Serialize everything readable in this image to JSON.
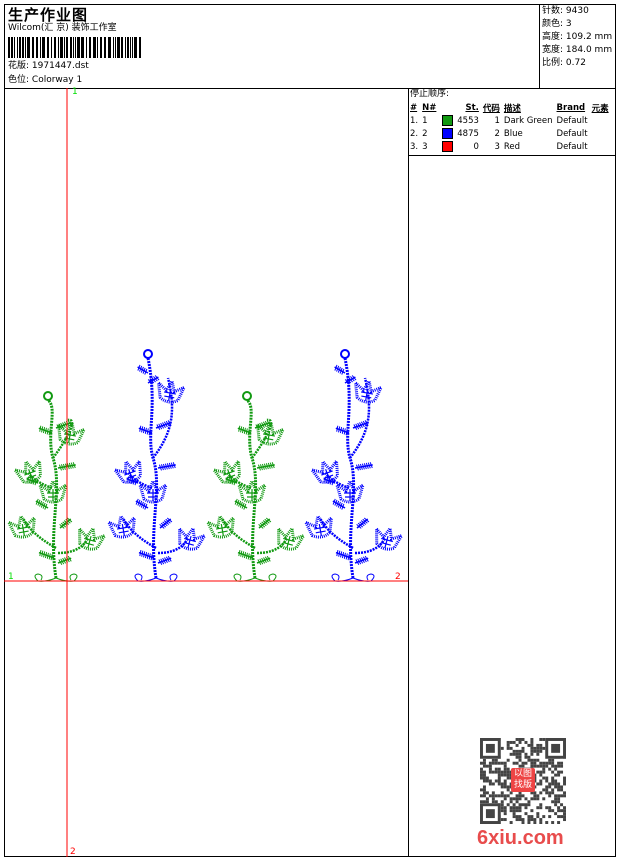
{
  "header": {
    "title": "生产作业图",
    "company": "Wilcom(汇 京) 装饰工作室",
    "design_label": "花版:",
    "design_value": "1971447.dst",
    "colorway_label": "色位:",
    "colorway_value": "Colorway 1"
  },
  "stats": [
    {
      "label": "针数:",
      "value": "9430"
    },
    {
      "label": "颜色:",
      "value": "3"
    },
    {
      "label": "高度:",
      "value": "109.2 mm"
    },
    {
      "label": "宽度:",
      "value": "184.0 mm"
    },
    {
      "label": "比例:",
      "value": "0.72"
    }
  ],
  "stop_sequence": {
    "title": "停止顺序:",
    "columns": [
      "#",
      "N#",
      "St.",
      "代码",
      "描述",
      "Brand",
      "元素"
    ],
    "rows": [
      {
        "num": "1.",
        "n": "1",
        "color": "#119911",
        "st": "4553",
        "code": "1",
        "desc": "Dark Green",
        "brand": "Default"
      },
      {
        "num": "2.",
        "n": "2",
        "color": "#0000ff",
        "st": "4875",
        "code": "2",
        "desc": "Blue",
        "brand": "Default"
      },
      {
        "num": "3.",
        "n": "3",
        "color": "#ff0000",
        "st": "0",
        "code": "3",
        "desc": "Red",
        "brand": "Default"
      }
    ]
  },
  "markers": {
    "top": "1",
    "bottom": "2",
    "left": "1",
    "right": "2"
  },
  "watermark": {
    "text": "6xiu.com",
    "seal": "以图找版"
  },
  "colors": {
    "green": "#119911",
    "blue": "#0000ff",
    "red": "#ff0000",
    "marker_green": "#00dd00"
  }
}
